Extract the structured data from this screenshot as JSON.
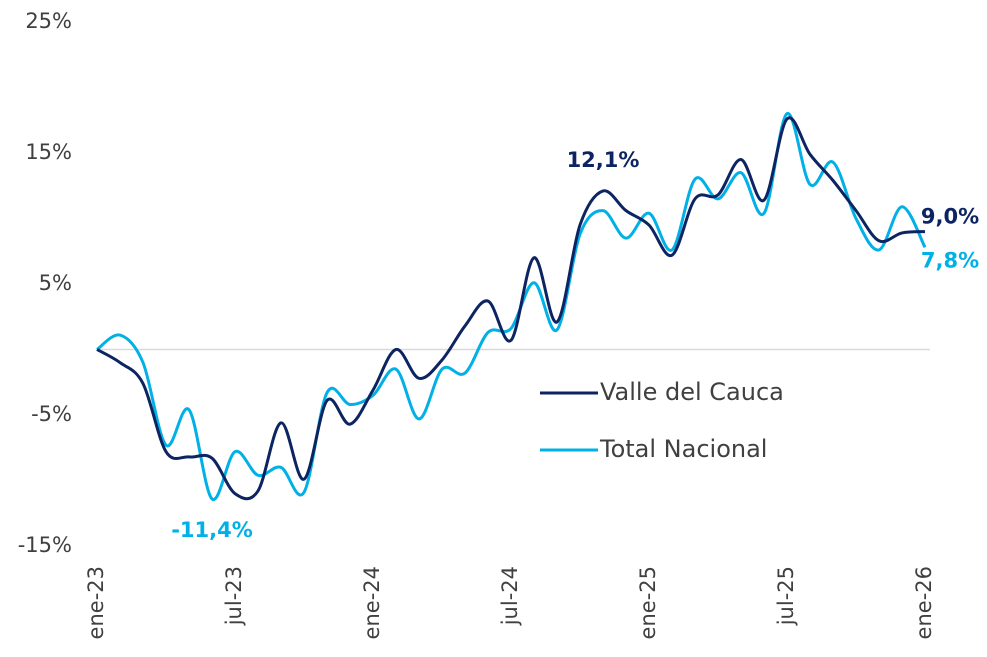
{
  "chart_data": {
    "type": "line",
    "categories": [
      "ene-23",
      null,
      null,
      null,
      null,
      null,
      "jul-23",
      null,
      null,
      null,
      null,
      null,
      "ene-24",
      null,
      null,
      null,
      null,
      null,
      "jul-24",
      null,
      null,
      null,
      null,
      null,
      "ene-25",
      null,
      null,
      null,
      null,
      null,
      "jul-25",
      null,
      null,
      null,
      null,
      null,
      "ene-26"
    ],
    "series": [
      {
        "name": "Valle del Cauca",
        "color": "#0c2461",
        "values": [
          0,
          -1,
          -2.6,
          -7.8,
          -8.2,
          -8.3,
          -11.0,
          -10.8,
          -5.6,
          -9.9,
          -3.9,
          -5.7,
          -3.1,
          0,
          -2.2,
          -0.8,
          1.8,
          3.7,
          0.7,
          7.0,
          2.1,
          9.5,
          12.1,
          10.6,
          9.5,
          7.2,
          11.5,
          11.8,
          14.5,
          11.4,
          17.6,
          14.9,
          12.9,
          10.6,
          8.3,
          8.9,
          9.0
        ],
        "value_labels": [
          null,
          null,
          null,
          null,
          null,
          null,
          null,
          null,
          null,
          null,
          null,
          null,
          null,
          null,
          null,
          null,
          null,
          null,
          null,
          null,
          null,
          null,
          "12,1%",
          null,
          null,
          null,
          null,
          null,
          null,
          null,
          null,
          null,
          null,
          null,
          null,
          null,
          "9,0%"
        ]
      },
      {
        "name": "Total Nacional",
        "color": "#00b0e6",
        "values": [
          0,
          1.1,
          -1.0,
          -7.3,
          -4.6,
          -11.4,
          -7.8,
          -9.6,
          -9.0,
          -10.9,
          -3.3,
          -4.2,
          -3.5,
          -1.5,
          -5.3,
          -1.5,
          -1.8,
          1.3,
          1.6,
          5.1,
          1.5,
          8.8,
          10.6,
          8.5,
          10.4,
          7.6,
          13.0,
          11.5,
          13.5,
          10.4,
          18.0,
          12.6,
          14.3,
          10.0,
          7.6,
          10.9,
          7.8
        ],
        "value_labels": [
          null,
          null,
          null,
          null,
          null,
          "-11,4%",
          null,
          null,
          null,
          null,
          null,
          null,
          null,
          null,
          null,
          null,
          null,
          null,
          null,
          null,
          null,
          null,
          null,
          null,
          null,
          null,
          null,
          null,
          null,
          null,
          null,
          null,
          null,
          null,
          null,
          null,
          "7,8%"
        ]
      }
    ],
    "ylim": [
      -15,
      25
    ],
    "yticks": [
      {
        "value": -15,
        "label": "-15%"
      },
      {
        "value": -5,
        "label": "-5%"
      },
      {
        "value": 5,
        "label": "5%"
      },
      {
        "value": 15,
        "label": "15%"
      },
      {
        "value": 25,
        "label": "25%"
      }
    ],
    "grid": false
  }
}
